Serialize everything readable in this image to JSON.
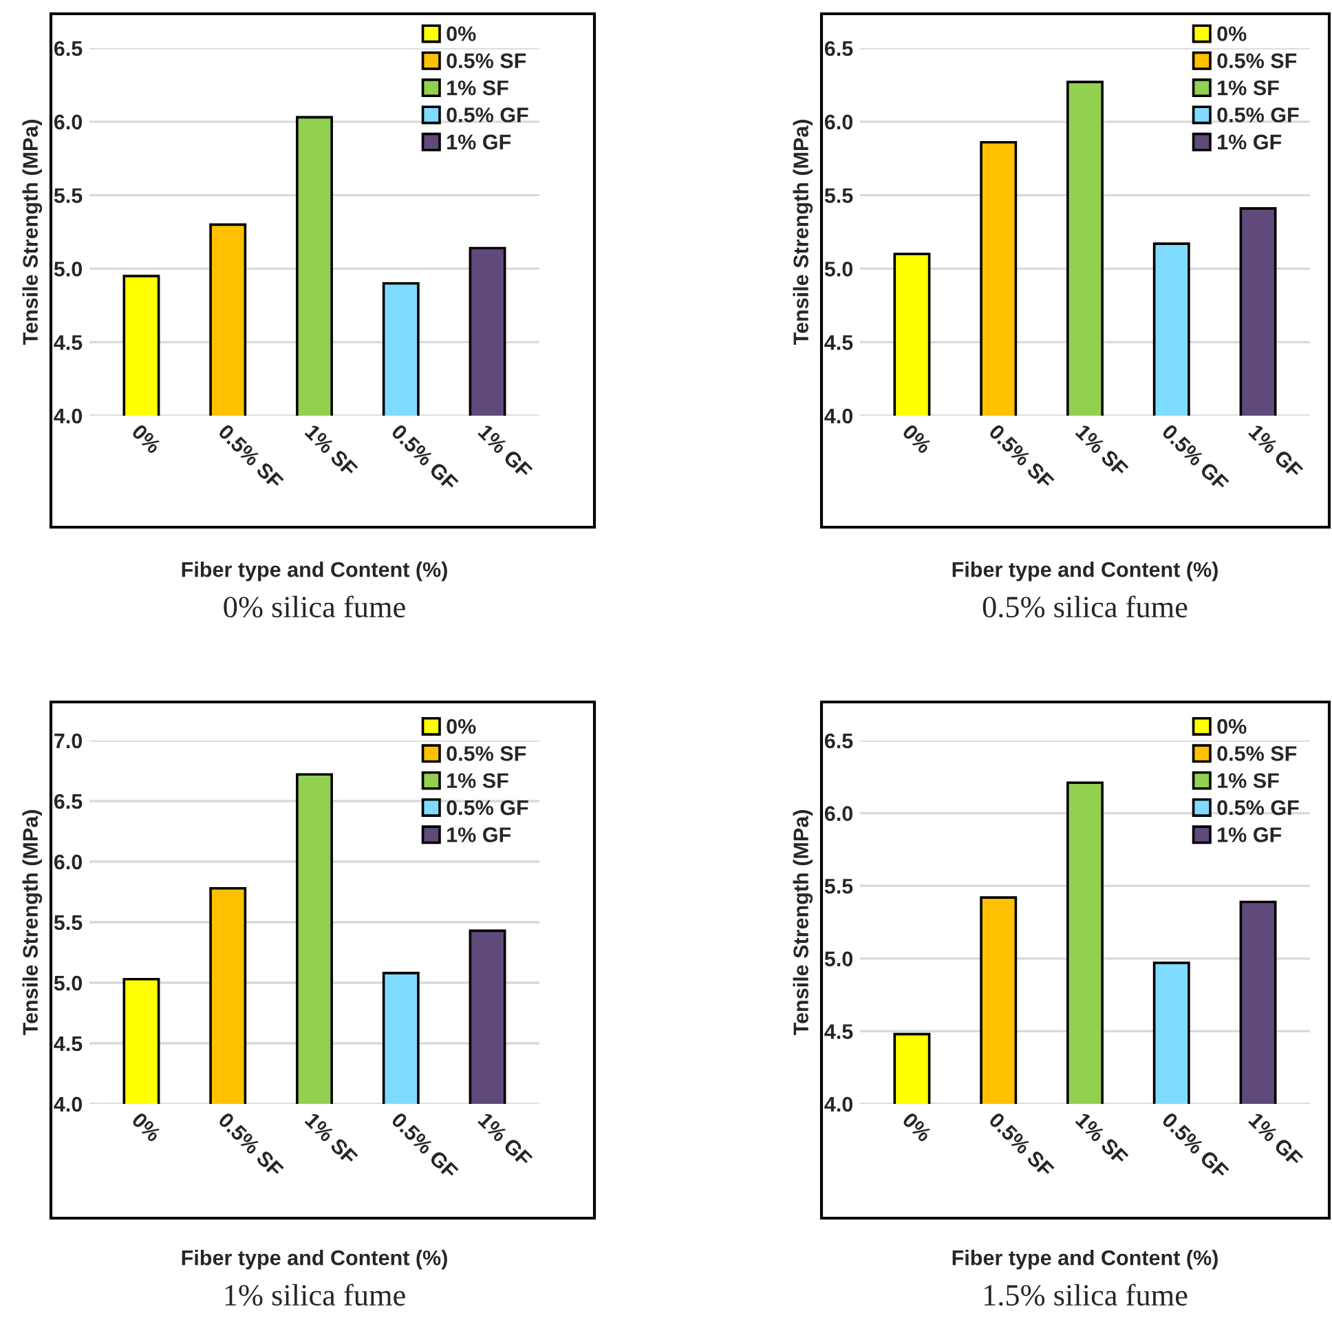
{
  "chart_data": [
    {
      "type": "bar",
      "title": "0% silica fume",
      "xlabel": "Fiber type and Content (%)",
      "ylabel": "Tensile Strength (MPa)",
      "categories": [
        "0%",
        "0.5% SF",
        "1% SF",
        "0.5% GF",
        "1% GF"
      ],
      "series": [
        {
          "name": "0%",
          "color": "#ffff00",
          "values": [
            4.95,
            null,
            null,
            null,
            null
          ]
        },
        {
          "name": "0.5% SF",
          "color": "#ffc000",
          "values": [
            null,
            5.3,
            null,
            null,
            null
          ]
        },
        {
          "name": "1% SF",
          "color": "#92d050",
          "values": [
            null,
            null,
            6.03,
            null,
            null
          ]
        },
        {
          "name": "0.5% GF",
          "color": "#7fdbff",
          "values": [
            null,
            null,
            null,
            4.9,
            null
          ]
        },
        {
          "name": "1% GF",
          "color": "#604a7b",
          "values": [
            null,
            null,
            null,
            null,
            5.14
          ]
        }
      ],
      "ylim": [
        4.0,
        6.5
      ],
      "yticks": [
        {
          "value": 4.0,
          "label": "4.0"
        },
        {
          "value": 4.5,
          "label": "4.5"
        },
        {
          "value": 5.0,
          "label": "5.0"
        },
        {
          "value": 5.5,
          "label": "5.5"
        },
        {
          "value": 6.0,
          "label": "6.0"
        },
        {
          "value": 6.5,
          "label": "6.5"
        }
      ],
      "grid": "y",
      "legend": "top right"
    },
    {
      "type": "bar",
      "title": "0.5% silica fume",
      "xlabel": "Fiber type and Content (%)",
      "ylabel": "Tensile Strength (MPa)",
      "categories": [
        "0%",
        "0.5% SF",
        "1% SF",
        "0.5% GF",
        "1% GF"
      ],
      "series": [
        {
          "name": "0%",
          "color": "#ffff00",
          "values": [
            5.1,
            null,
            null,
            null,
            null
          ]
        },
        {
          "name": "0.5% SF",
          "color": "#ffc000",
          "values": [
            null,
            5.86,
            null,
            null,
            null
          ]
        },
        {
          "name": "1% SF",
          "color": "#92d050",
          "values": [
            null,
            null,
            6.27,
            null,
            null
          ]
        },
        {
          "name": "0.5% GF",
          "color": "#7fdbff",
          "values": [
            null,
            null,
            null,
            5.17,
            null
          ]
        },
        {
          "name": "1% GF",
          "color": "#604a7b",
          "values": [
            null,
            null,
            null,
            null,
            5.41
          ]
        }
      ],
      "ylim": [
        4.0,
        6.5
      ],
      "yticks": [
        {
          "value": 4.0,
          "label": "4.0"
        },
        {
          "value": 4.5,
          "label": "4.5"
        },
        {
          "value": 5.0,
          "label": "5.0"
        },
        {
          "value": 5.5,
          "label": "5.5"
        },
        {
          "value": 6.0,
          "label": "6.0"
        },
        {
          "value": 6.5,
          "label": "6.5"
        }
      ],
      "grid": "y",
      "legend": "top right"
    },
    {
      "type": "bar",
      "title": "1% silica fume",
      "xlabel": "Fiber type and Content (%)",
      "ylabel": "Tensile Strength (MPa)",
      "categories": [
        "0%",
        "0.5% SF",
        "1% SF",
        "0.5% GF",
        "1% GF"
      ],
      "series": [
        {
          "name": "0%",
          "color": "#ffff00",
          "values": [
            5.03,
            null,
            null,
            null,
            null
          ]
        },
        {
          "name": "0.5% SF",
          "color": "#ffc000",
          "values": [
            null,
            5.78,
            null,
            null,
            null
          ]
        },
        {
          "name": "1% SF",
          "color": "#92d050",
          "values": [
            null,
            null,
            6.72,
            null,
            null
          ]
        },
        {
          "name": "0.5% GF",
          "color": "#7fdbff",
          "values": [
            null,
            null,
            null,
            5.08,
            null
          ]
        },
        {
          "name": "1% GF",
          "color": "#604a7b",
          "values": [
            null,
            null,
            null,
            null,
            5.43
          ]
        }
      ],
      "ylim": [
        4.0,
        7.0
      ],
      "yticks": [
        {
          "value": 4.0,
          "label": "4.0"
        },
        {
          "value": 4.5,
          "label": "4.5"
        },
        {
          "value": 5.0,
          "label": "5.0"
        },
        {
          "value": 5.5,
          "label": "5.5"
        },
        {
          "value": 6.0,
          "label": "6.0"
        },
        {
          "value": 6.5,
          "label": "6.5"
        },
        {
          "value": 7.0,
          "label": "7.0"
        }
      ],
      "grid": "y",
      "legend": "top right"
    },
    {
      "type": "bar",
      "title": "1.5% silica fume",
      "xlabel": "Fiber type and Content (%)",
      "ylabel": "Tensile Strength (MPa)",
      "categories": [
        "0%",
        "0.5% SF",
        "1% SF",
        "0.5% GF",
        "1% GF"
      ],
      "series": [
        {
          "name": "0%",
          "color": "#ffff00",
          "values": [
            4.48,
            null,
            null,
            null,
            null
          ]
        },
        {
          "name": "0.5% SF",
          "color": "#ffc000",
          "values": [
            null,
            5.42,
            null,
            null,
            null
          ]
        },
        {
          "name": "1% SF",
          "color": "#92d050",
          "values": [
            null,
            null,
            6.21,
            null,
            null
          ]
        },
        {
          "name": "0.5% GF",
          "color": "#7fdbff",
          "values": [
            null,
            null,
            null,
            4.97,
            null
          ]
        },
        {
          "name": "1% GF",
          "color": "#604a7b",
          "values": [
            null,
            null,
            null,
            null,
            5.39
          ]
        }
      ],
      "ylim": [
        4.0,
        6.5
      ],
      "yticks": [
        {
          "value": 4.0,
          "label": "4.0"
        },
        {
          "value": 4.5,
          "label": "4.5"
        },
        {
          "value": 5.0,
          "label": "5.0"
        },
        {
          "value": 5.5,
          "label": "5.5"
        },
        {
          "value": 6.0,
          "label": "6.0"
        },
        {
          "value": 6.5,
          "label": "6.5"
        }
      ],
      "grid": "y",
      "legend": "top right"
    }
  ]
}
